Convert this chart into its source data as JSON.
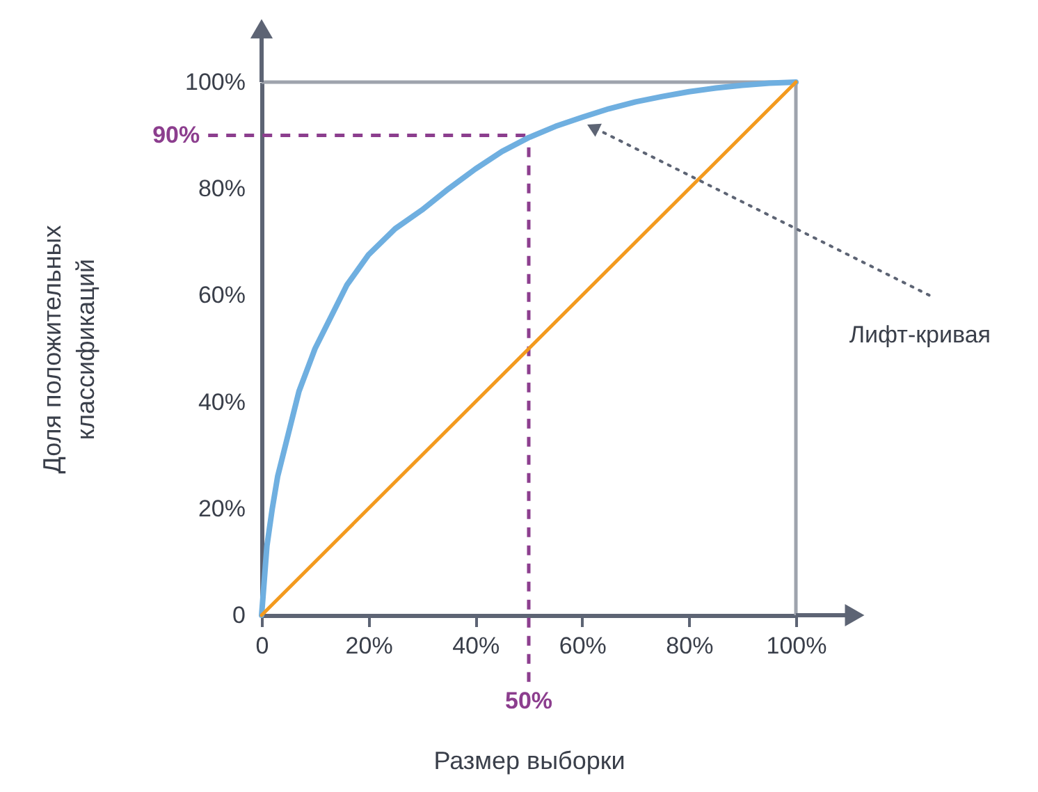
{
  "chart_data": {
    "type": "line",
    "xlabel": "Размер выборки",
    "ylabel": "Доля положительных классификаций",
    "xlim": [
      0,
      100
    ],
    "ylim": [
      0,
      100
    ],
    "xticks": [
      {
        "value": 0,
        "label": "0"
      },
      {
        "value": 20,
        "label": "20%"
      },
      {
        "value": 40,
        "label": "40%"
      },
      {
        "value": 60,
        "label": "60%"
      },
      {
        "value": 80,
        "label": "80%"
      },
      {
        "value": 100,
        "label": "100%"
      }
    ],
    "yticks": [
      {
        "value": 0,
        "label": "0"
      },
      {
        "value": 20,
        "label": "20%"
      },
      {
        "value": 40,
        "label": "40%"
      },
      {
        "value": 60,
        "label": "60%"
      },
      {
        "value": 80,
        "label": "80%"
      },
      {
        "value": 100,
        "label": "100%"
      }
    ],
    "series": [
      {
        "color": "#6fafe0",
        "x": [
          0,
          1,
          2,
          3,
          5,
          7,
          10,
          13,
          16,
          20,
          25,
          30,
          35,
          40,
          45,
          50,
          55,
          60,
          65,
          70,
          75,
          80,
          85,
          90,
          95,
          100
        ],
        "values": [
          0,
          13,
          20,
          26,
          34,
          42,
          50,
          56,
          62,
          67.6,
          72.5,
          76,
          80,
          83.7,
          87,
          89.6,
          91.7,
          93.4,
          95,
          96.3,
          97.3,
          98.2,
          98.9,
          99.4,
          99.8,
          100
        ]
      },
      {
        "color": "#f39a1e",
        "x": [
          0,
          100
        ],
        "values": [
          0,
          100
        ]
      }
    ],
    "ref_lines": [
      {
        "axis": "y",
        "value": 100,
        "color": "#9ea3ad"
      },
      {
        "axis": "x",
        "value": 100,
        "color": "#9ea3ad"
      },
      {
        "axis": "y",
        "value": 90,
        "label": "90%",
        "color": "#8c3e8e",
        "line_style": "dashed"
      },
      {
        "axis": "x",
        "value": 50,
        "label": "50%",
        "color": "#8c3e8e",
        "line_style": "dashed"
      }
    ],
    "annotations": [
      {
        "text": "Лифт-кривая",
        "x": 61,
        "y": 92
      }
    ],
    "grid": false,
    "marker": "none"
  }
}
